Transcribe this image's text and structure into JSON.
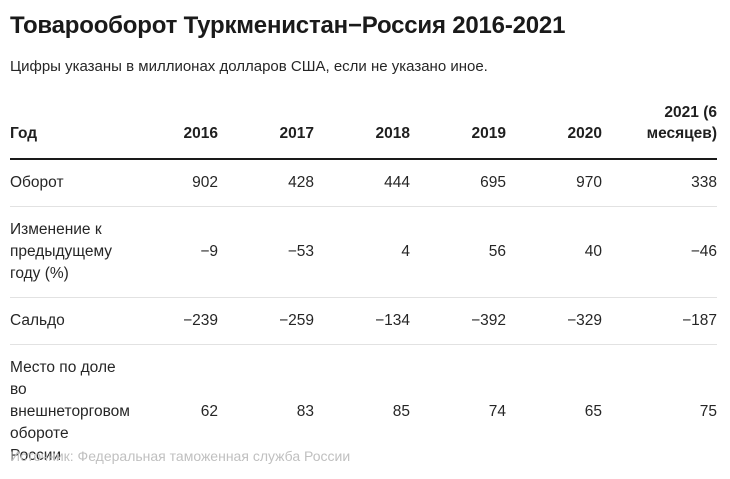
{
  "page": {
    "title": "Товарооборот Туркменистан−Россия 2016-2021",
    "subtitle": "Цифры указаны в миллионах долларов США, если не указано иное.",
    "footer_note": "Источник: Федеральная таможенная служба России"
  },
  "colors": {
    "title_text": "#1a1a1a",
    "body_text": "#262626",
    "header_rule": "#1a1a1a",
    "row_rule": "#e2e2e2",
    "background": "#ffffff"
  },
  "chart_data": {
    "type": "table",
    "title": "Товарооборот Туркменистан−Россия 2016-2021",
    "subtitle": "Цифры указаны в миллионах долларов США, если не указано иное.",
    "columns": [
      "Год",
      "2016",
      "2017",
      "2018",
      "2019",
      "2020",
      "2021 (6 месяцев)"
    ],
    "rows": [
      {
        "label": "Оборот",
        "values": [
          "902",
          "428",
          "444",
          "695",
          "970",
          "338"
        ]
      },
      {
        "label": "Изменение к предыдущему году (%)",
        "values": [
          "−9",
          "−53",
          "4",
          "56",
          "40",
          "−46"
        ]
      },
      {
        "label": "Сальдо",
        "values": [
          "−239",
          "−259",
          "−134",
          "−392",
          "−329",
          "−187"
        ]
      },
      {
        "label": "Место по доле во внешнеторговом обороте России",
        "values": [
          "62",
          "83",
          "85",
          "74",
          "65",
          "75"
        ]
      }
    ]
  }
}
